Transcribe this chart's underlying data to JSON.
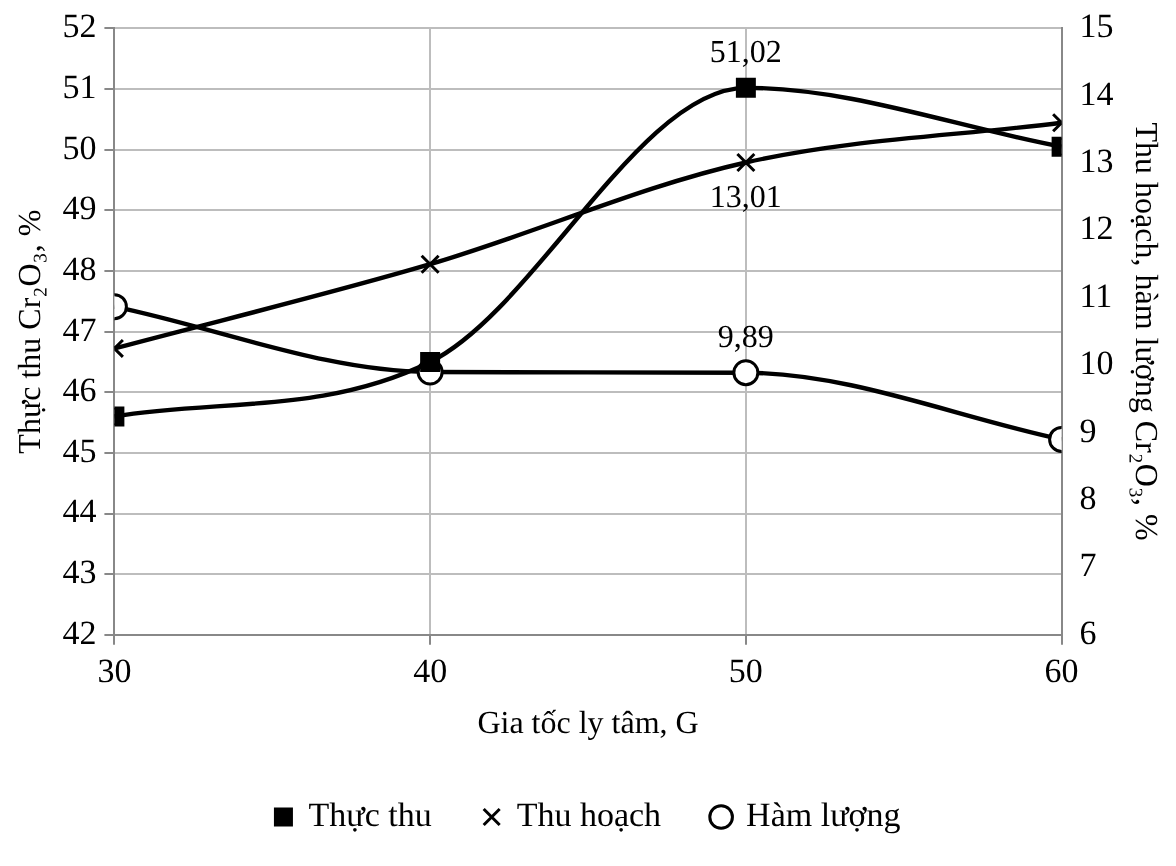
{
  "chart_data": {
    "type": "line",
    "xlabel": "Gia tốc ly tâm, G",
    "ylabel": "Thực thu Cr₂O₃, %",
    "y2label": "Thu hoạch, hàm lượng Cr₂O₃, %",
    "x": [
      30,
      40,
      50,
      60
    ],
    "xlim": [
      30,
      60
    ],
    "xticks": [
      30,
      40,
      50,
      60
    ],
    "ylim": [
      42,
      52
    ],
    "yticks": [
      42,
      43,
      44,
      45,
      46,
      47,
      48,
      49,
      50,
      51,
      52
    ],
    "y2lim": [
      6,
      15
    ],
    "y2ticks": [
      6,
      7,
      8,
      9,
      10,
      11,
      12,
      13,
      14,
      15
    ],
    "grid": true,
    "legend": "bottom",
    "line_style": "solid",
    "series": [
      {
        "name": "Thực thu",
        "color": "#000000",
        "marker": "square",
        "values": [
          45.6,
          46.5,
          51.02,
          50.05
        ],
        "value_labels": [
          null,
          null,
          "51,02",
          null
        ]
      },
      {
        "name": "Thu hoạch",
        "color": "#000000",
        "marker": "cross",
        "axis": "y2",
        "values": [
          10.25,
          11.5,
          13.01,
          13.6
        ],
        "value_labels": [
          null,
          null,
          "13,01",
          null
        ]
      },
      {
        "name": "Hàm lượng",
        "color": "#000000",
        "marker": "circle",
        "axis": "y2",
        "values": [
          10.87,
          9.9,
          9.89,
          8.9
        ],
        "value_labels": [
          null,
          null,
          "9,89",
          null
        ]
      }
    ]
  }
}
